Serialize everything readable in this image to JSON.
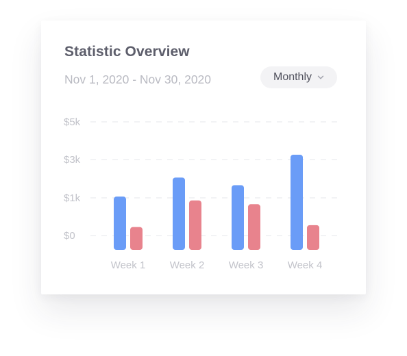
{
  "card": {
    "title": "Statistic Overview",
    "date_range": "Nov 1, 2020 - Nov 30, 2020",
    "period_select": {
      "selected": "Monthly",
      "icon": "chevron-down-icon"
    }
  },
  "colors": {
    "series_a": "#6a9cf7",
    "series_b": "#e8838d",
    "grid": "#e6e7eb",
    "tick_text": "#c2c3ca"
  },
  "chart_data": {
    "type": "bar",
    "categories": [
      "Week 1",
      "Week 2",
      "Week 3",
      "Week 4"
    ],
    "y_ticks": [
      "$0",
      "$1k",
      "$3k",
      "$5k"
    ],
    "series": [
      {
        "values": [
          1.4,
          1.9,
          1.7,
          2.5
        ]
      },
      {
        "values": [
          0.6,
          1.3,
          1.2,
          0.65
        ]
      }
    ],
    "title": "",
    "xlabel": "",
    "ylabel": "",
    "grid": true,
    "legend": "none"
  }
}
